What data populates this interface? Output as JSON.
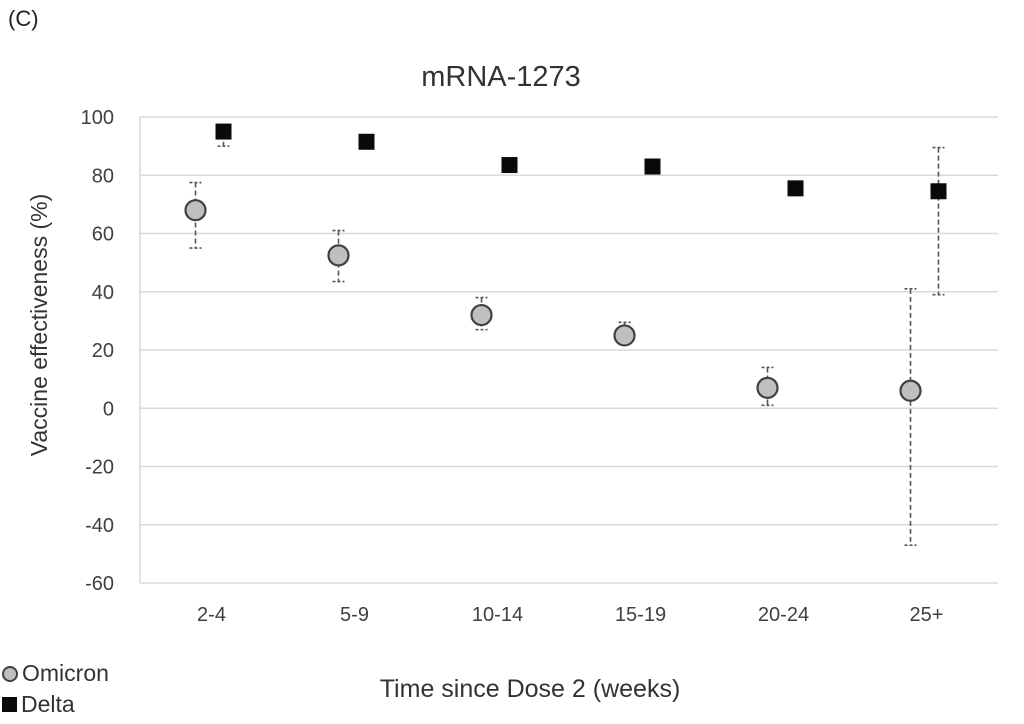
{
  "panel_label": "(C)",
  "chart_data": {
    "type": "scatter",
    "title": "mRNA-1273",
    "xlabel": "Time since Dose 2 (weeks)",
    "ylabel": "Vaccine effectiveness (%)",
    "categories": [
      "2-4",
      "5-9",
      "10-14",
      "15-19",
      "20-24",
      "25+"
    ],
    "ylim": [
      -60,
      100
    ],
    "yticks": [
      -60,
      -40,
      -20,
      0,
      20,
      40,
      60,
      80,
      100
    ],
    "grid": true,
    "legend_position": "bottom-left",
    "series": [
      {
        "name": "Omicron",
        "marker": "circle",
        "color": "#bfbfbf",
        "values": [
          68,
          52.5,
          32,
          25,
          7,
          6
        ],
        "ci_low": [
          55,
          43.5,
          27,
          22,
          1,
          -47
        ],
        "ci_high": [
          77.5,
          61,
          38,
          29.5,
          14,
          41
        ]
      },
      {
        "name": "Delta",
        "marker": "square",
        "color": "#0a0a0a",
        "values": [
          95,
          91.5,
          83.5,
          83,
          75.5,
          74.5
        ],
        "ci_low": [
          90,
          90.5,
          82,
          82,
          74,
          39
        ],
        "ci_high": [
          97,
          93,
          85,
          84.5,
          77,
          89.5
        ]
      }
    ]
  },
  "legend": {
    "omicron": "Omicron",
    "delta": "Delta"
  }
}
